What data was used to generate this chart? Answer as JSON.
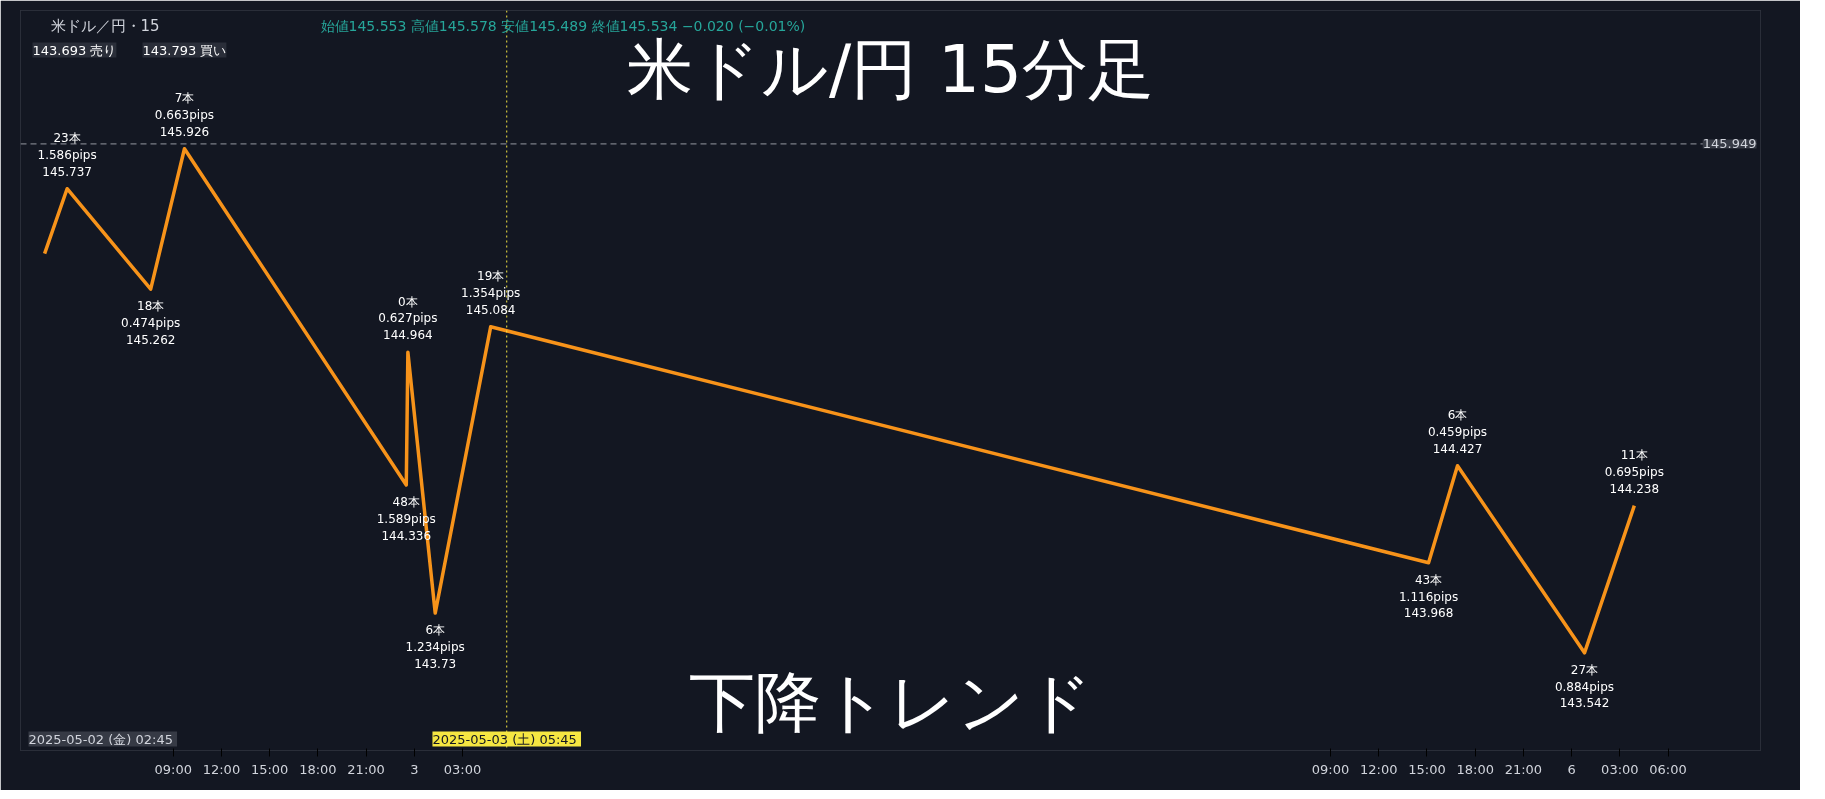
{
  "chart_data": {
    "type": "line",
    "title": "米ドル/円 15分足",
    "subtitle": "米ドル／円・15",
    "x": [
      "2025-05-02T01:00",
      "2025-05-02T02:24",
      "2025-05-02T07:36",
      "2025-05-02T09:42",
      "2025-05-02T23:30",
      "2025-05-02T23:36",
      "2025-05-03T01:18",
      "2025-05-03T04:45",
      "2025-05-05T15:06",
      "2025-05-05T16:54",
      "2025-05-06T00:48",
      "2025-05-06T03:54"
    ],
    "series": [
      {
        "color": "#f7931a",
        "values": [
          145.43,
          145.737,
          145.262,
          145.926,
          144.336,
          144.964,
          143.73,
          145.084,
          143.968,
          144.427,
          143.542,
          144.238
        ],
        "value_labels": [
          null,
          "23本\n1.586pips\n145.737",
          "18本\n0.474pips\n145.262",
          "7本\n0.663pips\n145.926",
          "48本\n1.589pips\n144.336",
          "0本\n0.627pips\n144.964",
          "6本\n1.234pips\n143.73",
          "19本\n1.354pips\n145.084",
          "43本\n1.116pips\n143.968",
          "6本\n0.459pips\n144.427",
          "27本\n0.884pips\n143.542",
          "11本\n0.695pips\n144.238"
        ]
      }
    ],
    "xlim": [
      "2025-05-01T23:30",
      "2025-05-06T11:45"
    ],
    "ylim": [
      143.08,
      146.58
    ],
    "xticks": [
      {
        "value": "2025-05-02T09:00",
        "label": "09:00"
      },
      {
        "value": "2025-05-02T12:00",
        "label": "12:00"
      },
      {
        "value": "2025-05-02T15:00",
        "label": "15:00"
      },
      {
        "value": "2025-05-02T18:00",
        "label": "18:00"
      },
      {
        "value": "2025-05-02T21:00",
        "label": "21:00"
      },
      {
        "value": "2025-05-03",
        "label": "3"
      },
      {
        "value": "2025-05-03T03:00",
        "label": "03:00"
      },
      {
        "value": "2025-05-05T09:00",
        "label": "09:00"
      },
      {
        "value": "2025-05-05T12:00",
        "label": "12:00"
      },
      {
        "value": "2025-05-05T15:00",
        "label": "15:00"
      },
      {
        "value": "2025-05-05T18:00",
        "label": "18:00"
      },
      {
        "value": "2025-05-05T21:00",
        "label": "21:00"
      },
      {
        "value": "2025-05-06",
        "label": "6"
      },
      {
        "value": "2025-05-06T03:00",
        "label": "03:00"
      },
      {
        "value": "2025-05-06T06:00",
        "label": "06:00"
      }
    ],
    "tick_labels": "x",
    "grid": false,
    "marker": "none",
    "line_style": "solid",
    "ref_lines": [
      {
        "axis": "y",
        "value": 145.949,
        "label": "145.949",
        "color": "#9598a1",
        "line_style": "dashed"
      },
      {
        "axis": "x",
        "value": "2025-05-03T05:45",
        "label": "2025-05-03 (土)  05:45",
        "color": "#f5e642",
        "line_style": "dotted"
      }
    ],
    "annotations": [
      "下降トレンド",
      "始値145.553  高値145.578  安値145.489  終値145.534  −0.020 (−0.01%)",
      "143.693 売り",
      "143.793 買い",
      "2025-05-02 (金)  02:45"
    ]
  }
}
